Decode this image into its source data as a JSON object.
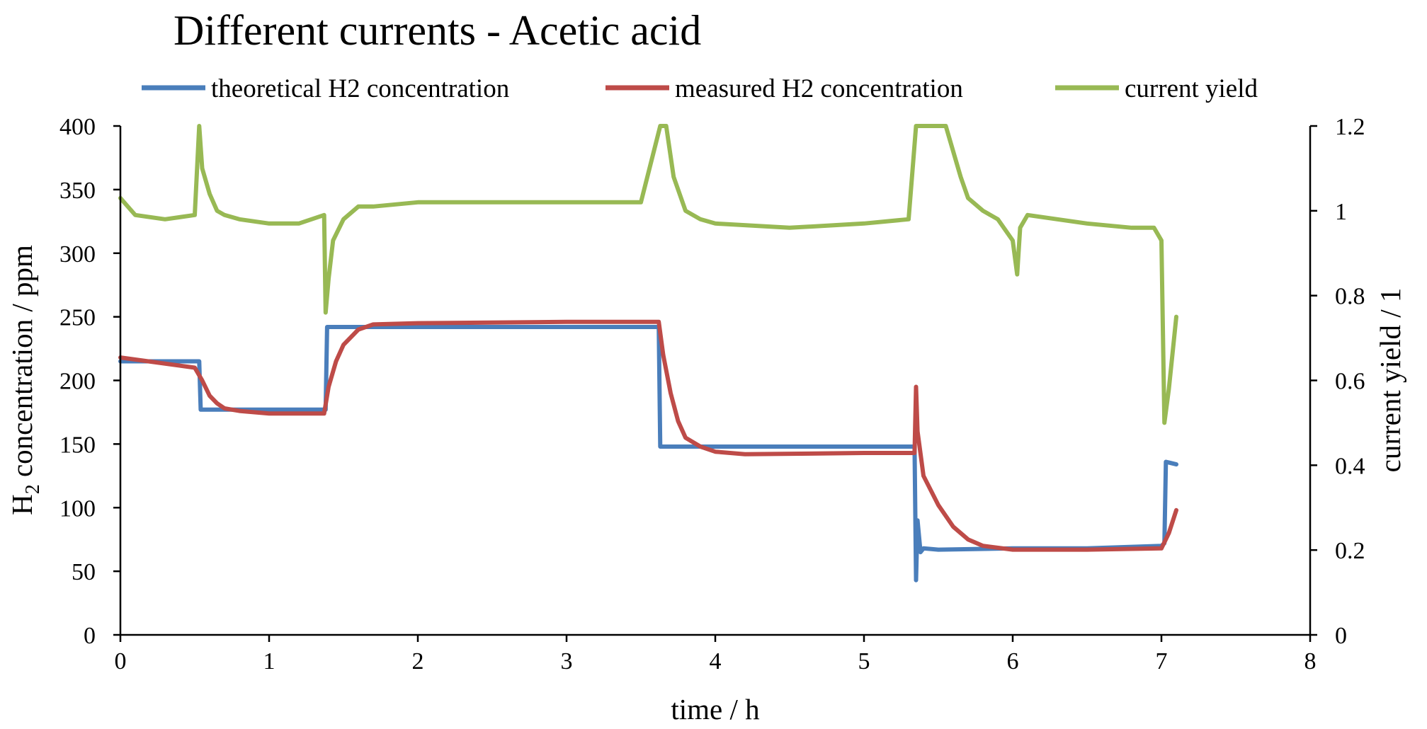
{
  "colors": {
    "theoretical": "#4a7ebb",
    "measured": "#be4b48",
    "current_yield": "#98b954"
  },
  "chart_data": {
    "type": "line",
    "title": "Different currents - Acetic acid",
    "xlabel": "time / h",
    "ylabel_main": "H",
    "ylabel_sub": "2",
    "ylabel_rest": " concentration / ppm",
    "y2label": "current yield / 1",
    "xlim": [
      0,
      8
    ],
    "ylim": [
      0,
      400
    ],
    "y2lim": [
      0,
      1.2
    ],
    "xticks": [
      "0",
      "1",
      "2",
      "3",
      "4",
      "5",
      "6",
      "7",
      "8"
    ],
    "yticks": [
      "0",
      "50",
      "100",
      "150",
      "200",
      "250",
      "300",
      "350",
      "400"
    ],
    "y2ticks": [
      "0",
      "0.2",
      "0.4",
      "0.6",
      "0.8",
      "1",
      "1.2"
    ],
    "legend_position": "top",
    "series": [
      {
        "name": "theoretical H2 concentration",
        "axis": "left",
        "x": [
          0,
          0.53,
          0.54,
          1.38,
          1.39,
          3.62,
          3.63,
          5.34,
          5.35,
          5.36,
          5.38,
          5.4,
          5.5,
          6.0,
          6.5,
          7.0,
          7.02,
          7.03,
          7.1
        ],
        "y": [
          215,
          215,
          177,
          177,
          242,
          242,
          148,
          148,
          43,
          90,
          65,
          68,
          67,
          68,
          68,
          70,
          72,
          136,
          134
        ]
      },
      {
        "name": "measured H2 concentration",
        "axis": "left",
        "x": [
          0,
          0.5,
          0.55,
          0.6,
          0.65,
          0.7,
          0.8,
          1.0,
          1.37,
          1.4,
          1.45,
          1.5,
          1.6,
          1.7,
          2.0,
          3.0,
          3.62,
          3.65,
          3.7,
          3.75,
          3.8,
          3.9,
          4.0,
          4.2,
          5.0,
          5.34,
          5.35,
          5.36,
          5.4,
          5.5,
          5.6,
          5.7,
          5.8,
          6.0,
          6.5,
          7.0,
          7.05,
          7.1
        ],
        "y": [
          218,
          210,
          200,
          188,
          182,
          178,
          176,
          174,
          174,
          195,
          215,
          228,
          240,
          244,
          245,
          246,
          246,
          220,
          190,
          168,
          155,
          148,
          144,
          142,
          143,
          143,
          195,
          160,
          125,
          102,
          85,
          75,
          70,
          67,
          67,
          68,
          80,
          98
        ]
      },
      {
        "name": "current yield",
        "axis": "right",
        "x": [
          0,
          0.1,
          0.3,
          0.5,
          0.53,
          0.55,
          0.6,
          0.65,
          0.7,
          0.8,
          1.0,
          1.2,
          1.37,
          1.38,
          1.4,
          1.43,
          1.5,
          1.6,
          1.7,
          2.0,
          2.5,
          3.0,
          3.5,
          3.63,
          3.65,
          3.67,
          3.72,
          3.8,
          3.9,
          4.0,
          4.5,
          5.0,
          5.3,
          5.35,
          5.36,
          5.38,
          5.55,
          5.6,
          5.65,
          5.7,
          5.8,
          5.9,
          6.0,
          6.03,
          6.05,
          6.1,
          6.3,
          6.5,
          6.8,
          6.95,
          7.0,
          7.02,
          7.05,
          7.1
        ],
        "y": [
          1.03,
          0.99,
          0.98,
          0.99,
          1.2,
          1.1,
          1.04,
          1.0,
          0.99,
          0.98,
          0.97,
          0.97,
          0.99,
          0.76,
          0.84,
          0.93,
          0.98,
          1.01,
          1.01,
          1.02,
          1.02,
          1.02,
          1.02,
          1.2,
          1.2,
          1.2,
          1.08,
          1.0,
          0.98,
          0.97,
          0.96,
          0.97,
          0.98,
          1.2,
          1.2,
          1.2,
          1.2,
          1.14,
          1.08,
          1.03,
          1.0,
          0.98,
          0.93,
          0.85,
          0.96,
          0.99,
          0.98,
          0.97,
          0.96,
          0.96,
          0.93,
          0.5,
          0.58,
          0.75
        ]
      }
    ]
  }
}
